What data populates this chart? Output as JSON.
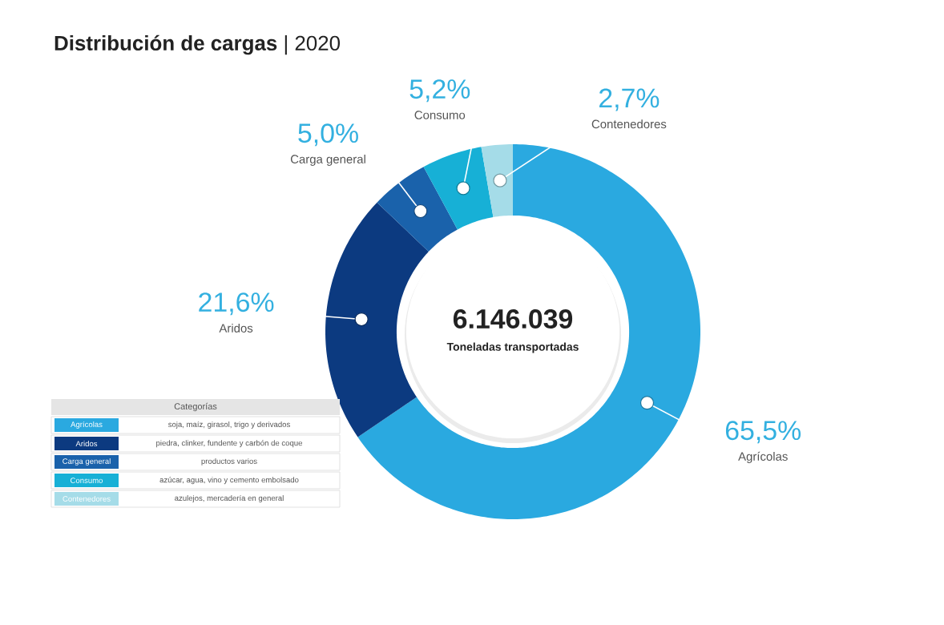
{
  "chart_data": {
    "type": "donut",
    "title": "**Distribución de cargas** | 2020",
    "categories": [
      "Agrícolas",
      "Aridos",
      "Carga general",
      "Consumo",
      "Contenedores"
    ],
    "values": [
      65.5,
      21.6,
      5.0,
      5.2,
      2.7
    ],
    "value_labels": [
      "65,5%",
      "21,6%",
      "5,0%",
      "5,2%",
      "2,7%"
    ],
    "colors": [
      "#2aa9e0",
      "#0c3a80",
      "#1a62ab",
      "#17b0d6",
      "#a5dce8"
    ],
    "legend_title": "Categorías",
    "annotations": [
      "6.146.039",
      "Toneladas transportadas",
      "soja, maíz, girasol, trigo y derivados",
      "piedra, clinker, fundente y carbón de coque",
      "productos varios",
      "azúcar, agua, vino y cemento embolsado",
      "azulejos, mercadería en general"
    ]
  }
}
